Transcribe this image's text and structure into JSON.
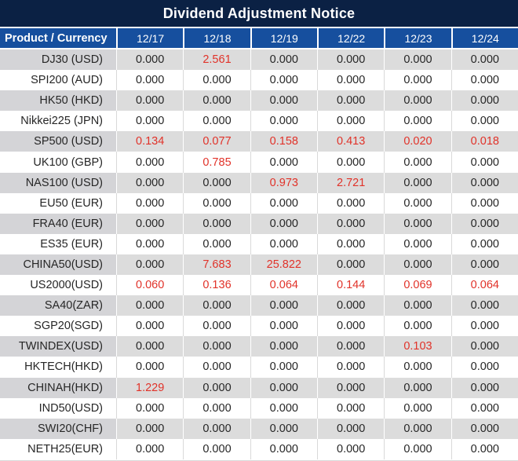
{
  "title": "Dividend Adjustment Notice",
  "colors": {
    "title_bg": "#0b2144",
    "header_bg": "#164f9e",
    "row_gray": "#dcdcdc",
    "label_gray": "#d4d4d7",
    "row_white": "#ffffff",
    "value_red": "#e13229",
    "value_black": "#262626"
  },
  "table": {
    "label_header": "Product / Currency",
    "date_headers": [
      "12/17",
      "12/18",
      "12/19",
      "12/22",
      "12/23",
      "12/24"
    ],
    "rows": [
      {
        "product": "DJ30 (USD)",
        "values": [
          "0.000",
          "2.561",
          "0.000",
          "0.000",
          "0.000",
          "0.000"
        ],
        "red": [
          false,
          true,
          false,
          false,
          false,
          false
        ]
      },
      {
        "product": "SPI200 (AUD)",
        "values": [
          "0.000",
          "0.000",
          "0.000",
          "0.000",
          "0.000",
          "0.000"
        ],
        "red": [
          false,
          false,
          false,
          false,
          false,
          false
        ]
      },
      {
        "product": "HK50 (HKD)",
        "values": [
          "0.000",
          "0.000",
          "0.000",
          "0.000",
          "0.000",
          "0.000"
        ],
        "red": [
          false,
          false,
          false,
          false,
          false,
          false
        ]
      },
      {
        "product": "Nikkei225 (JPN)",
        "values": [
          "0.000",
          "0.000",
          "0.000",
          "0.000",
          "0.000",
          "0.000"
        ],
        "red": [
          false,
          false,
          false,
          false,
          false,
          false
        ]
      },
      {
        "product": "SP500 (USD)",
        "values": [
          "0.134",
          "0.077",
          "0.158",
          "0.413",
          "0.020",
          "0.018"
        ],
        "red": [
          true,
          true,
          true,
          true,
          true,
          true
        ]
      },
      {
        "product": "UK100 (GBP)",
        "values": [
          "0.000",
          "0.785",
          "0.000",
          "0.000",
          "0.000",
          "0.000"
        ],
        "red": [
          false,
          true,
          false,
          false,
          false,
          false
        ]
      },
      {
        "product": "NAS100 (USD)",
        "values": [
          "0.000",
          "0.000",
          "0.973",
          "2.721",
          "0.000",
          "0.000"
        ],
        "red": [
          false,
          false,
          true,
          true,
          false,
          false
        ]
      },
      {
        "product": "EU50 (EUR)",
        "values": [
          "0.000",
          "0.000",
          "0.000",
          "0.000",
          "0.000",
          "0.000"
        ],
        "red": [
          false,
          false,
          false,
          false,
          false,
          false
        ]
      },
      {
        "product": "FRA40 (EUR)",
        "values": [
          "0.000",
          "0.000",
          "0.000",
          "0.000",
          "0.000",
          "0.000"
        ],
        "red": [
          false,
          false,
          false,
          false,
          false,
          false
        ]
      },
      {
        "product": "ES35 (EUR)",
        "values": [
          "0.000",
          "0.000",
          "0.000",
          "0.000",
          "0.000",
          "0.000"
        ],
        "red": [
          false,
          false,
          false,
          false,
          false,
          false
        ]
      },
      {
        "product": "CHINA50(USD)",
        "values": [
          "0.000",
          "7.683",
          "25.822",
          "0.000",
          "0.000",
          "0.000"
        ],
        "red": [
          false,
          true,
          true,
          false,
          false,
          false
        ]
      },
      {
        "product": "US2000(USD)",
        "values": [
          "0.060",
          "0.136",
          "0.064",
          "0.144",
          "0.069",
          "0.064"
        ],
        "red": [
          true,
          true,
          true,
          true,
          true,
          true
        ]
      },
      {
        "product": "SA40(ZAR)",
        "values": [
          "0.000",
          "0.000",
          "0.000",
          "0.000",
          "0.000",
          "0.000"
        ],
        "red": [
          false,
          false,
          false,
          false,
          false,
          false
        ]
      },
      {
        "product": "SGP20(SGD)",
        "values": [
          "0.000",
          "0.000",
          "0.000",
          "0.000",
          "0.000",
          "0.000"
        ],
        "red": [
          false,
          false,
          false,
          false,
          false,
          false
        ]
      },
      {
        "product": "TWINDEX(USD)",
        "values": [
          "0.000",
          "0.000",
          "0.000",
          "0.000",
          "0.103",
          "0.000"
        ],
        "red": [
          false,
          false,
          false,
          false,
          true,
          false
        ]
      },
      {
        "product": "HKTECH(HKD)",
        "values": [
          "0.000",
          "0.000",
          "0.000",
          "0.000",
          "0.000",
          "0.000"
        ],
        "red": [
          false,
          false,
          false,
          false,
          false,
          false
        ]
      },
      {
        "product": "CHINAH(HKD)",
        "values": [
          "1.229",
          "0.000",
          "0.000",
          "0.000",
          "0.000",
          "0.000"
        ],
        "red": [
          true,
          false,
          false,
          false,
          false,
          false
        ]
      },
      {
        "product": "IND50(USD)",
        "values": [
          "0.000",
          "0.000",
          "0.000",
          "0.000",
          "0.000",
          "0.000"
        ],
        "red": [
          false,
          false,
          false,
          false,
          false,
          false
        ]
      },
      {
        "product": "SWI20(CHF)",
        "values": [
          "0.000",
          "0.000",
          "0.000",
          "0.000",
          "0.000",
          "0.000"
        ],
        "red": [
          false,
          false,
          false,
          false,
          false,
          false
        ]
      },
      {
        "product": "NETH25(EUR)",
        "values": [
          "0.000",
          "0.000",
          "0.000",
          "0.000",
          "0.000",
          "0.000"
        ],
        "red": [
          false,
          false,
          false,
          false,
          false,
          false
        ]
      }
    ]
  }
}
